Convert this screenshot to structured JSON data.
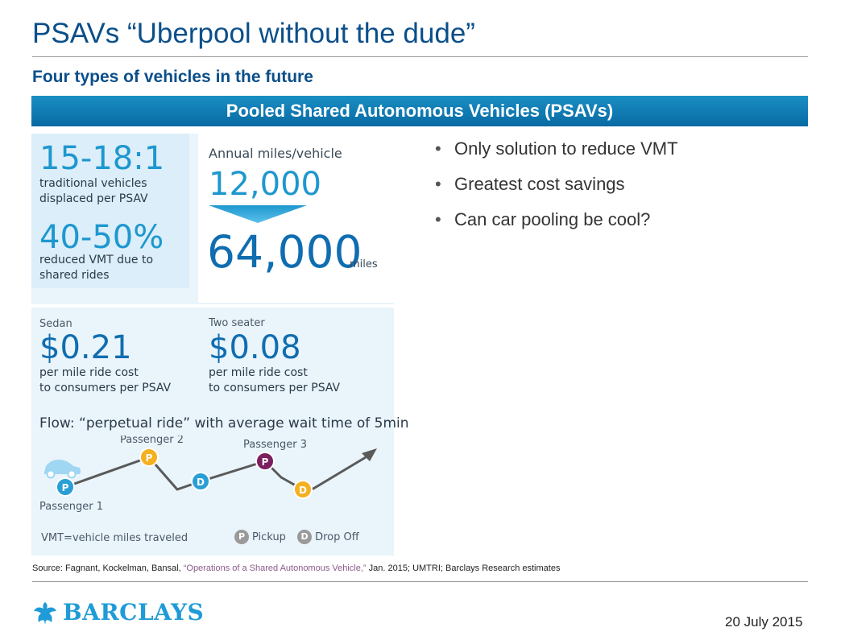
{
  "header": {
    "title": "PSAVs “Uberpool without the dude”",
    "subtitle": "Four types of vehicles in the future",
    "banner": "Pooled Shared Autonomous Vehicles (PSAVs)"
  },
  "infographic": {
    "ratio": "15-18:1",
    "ratio_desc": "traditional vehicles displaced per PSAV",
    "vmt_pct": "40-50%",
    "vmt_desc": "reduced VMT due to shared rides",
    "annual_label": "Annual miles/vehicle",
    "old_miles": "12,000",
    "new_miles": "64,000",
    "miles_unit": "miles",
    "sedan_label": "Sedan",
    "sedan_cost": "$0.21",
    "sedan_desc_1": "per mile ride cost",
    "sedan_desc_2": "to consumers per PSAV",
    "two_label": "Two seater",
    "two_cost": "$0.08",
    "two_desc_1": "per mile ride cost",
    "two_desc_2": "to consumers per PSAV",
    "flow_title": "Flow: “perpetual ride” with average wait time of 5min",
    "passenger_1": "Passenger 1",
    "passenger_2": "Passenger 2",
    "passenger_3": "Passenger 3",
    "pickup_letter": "P",
    "dropoff_letter": "D",
    "vmt_note": "VMT=vehicle miles traveled",
    "legend_pickup": "Pickup",
    "legend_dropoff": "Drop Off",
    "colors": {
      "passenger_1": "#2a9fd6",
      "passenger_2": "#f5b020",
      "passenger_3": "#7b1f5e",
      "accent": "#1e97cf"
    }
  },
  "bullets": [
    "Only solution to reduce VMT",
    "Greatest cost savings",
    "Can car pooling be cool?"
  ],
  "footer": {
    "source_prefix": "Source: Fagnant, Kockelman, Bansal, ",
    "source_quote": "“Operations of a Shared Autonomous Vehicle,”",
    "source_suffix": " Jan. 2015; UMTRI; Barclays Research estimates",
    "logo": "BARCLAYS",
    "date": "20 July 2015"
  }
}
